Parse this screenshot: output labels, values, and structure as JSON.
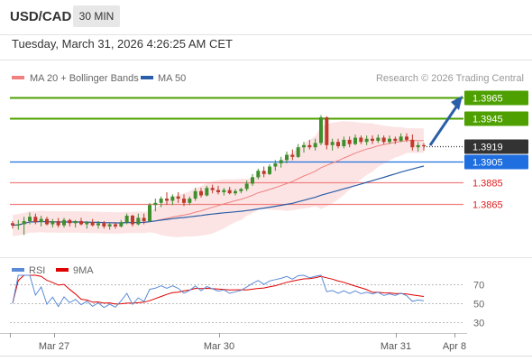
{
  "header": {
    "symbol": "USD/CAD",
    "timeframe": "30 MIN"
  },
  "timestamp": "Tuesday, March 31, 2026 4:26:25 AM CET",
  "legend": {
    "bb_label": "MA 20 + Bollinger Bands",
    "ma50_label": "MA 50",
    "rsi_label": "RSI",
    "rsi_ma_label": "9MA",
    "colors": {
      "bb": "#f08080",
      "ma50": "#2b5ea8",
      "rsi": "#5b8bd6",
      "rsi_ma": "#e00000"
    }
  },
  "copyright": "Research © 2026 Trading Central",
  "price_levels": [
    {
      "value": "1.3965",
      "type": "resistance",
      "color": "#4ea000"
    },
    {
      "value": "1.3945",
      "type": "resistance",
      "color": "#4ea000"
    },
    {
      "value": "1.3919",
      "type": "current",
      "color": "#333333"
    },
    {
      "value": "1.3905",
      "type": "pivot",
      "color": "#1f6fe0"
    },
    {
      "value": "1.3885",
      "type": "support",
      "color": "#f08080"
    },
    {
      "value": "1.3865",
      "type": "support",
      "color": "#f08080"
    }
  ],
  "chart_data": {
    "type": "candlestick",
    "x_tick_labels": [
      "Mar 27",
      "Mar 30",
      "Mar 31",
      "Apr 8"
    ],
    "price_range": [
      1.3835,
      1.397
    ],
    "rsi_levels": [
      "70",
      "50",
      "30"
    ],
    "rsi_range": [
      20,
      80
    ],
    "series": [
      {
        "name": "MA 20 + Bollinger Bands"
      },
      {
        "name": "MA 50"
      },
      {
        "name": "RSI"
      },
      {
        "name": "9MA"
      }
    ],
    "candles": [
      [
        1.3847,
        1.3849,
        1.3842,
        1.3845
      ],
      [
        1.3845,
        1.385,
        1.3841,
        1.3846
      ],
      [
        1.3846,
        1.3853,
        1.3836,
        1.3849
      ],
      [
        1.3849,
        1.3857,
        1.3846,
        1.3853
      ],
      [
        1.3853,
        1.3856,
        1.3846,
        1.3848
      ],
      [
        1.3848,
        1.3854,
        1.3844,
        1.3851
      ],
      [
        1.3851,
        1.3853,
        1.3845,
        1.3846
      ],
      [
        1.3846,
        1.3851,
        1.3843,
        1.3849
      ],
      [
        1.3849,
        1.3852,
        1.3843,
        1.3845
      ],
      [
        1.3845,
        1.3852,
        1.3843,
        1.385
      ],
      [
        1.385,
        1.3851,
        1.3844,
        1.3847
      ],
      [
        1.3847,
        1.385,
        1.3843,
        1.3849
      ],
      [
        1.3849,
        1.3852,
        1.3845,
        1.3846
      ],
      [
        1.3846,
        1.3849,
        1.3842,
        1.3848
      ],
      [
        1.3848,
        1.3851,
        1.3844,
        1.3845
      ],
      [
        1.3845,
        1.3849,
        1.3842,
        1.3847
      ],
      [
        1.3847,
        1.3849,
        1.3842,
        1.3844
      ],
      [
        1.3844,
        1.3848,
        1.3841,
        1.3846
      ],
      [
        1.3846,
        1.3848,
        1.3842,
        1.3844
      ],
      [
        1.3844,
        1.385,
        1.3843,
        1.3848
      ],
      [
        1.3848,
        1.3856,
        1.3846,
        1.3854
      ],
      [
        1.3854,
        1.3855,
        1.3844,
        1.3846
      ],
      [
        1.3846,
        1.3856,
        1.3845,
        1.3852
      ],
      [
        1.3852,
        1.3856,
        1.3846,
        1.3849
      ],
      [
        1.3849,
        1.3866,
        1.3848,
        1.3864
      ],
      [
        1.3864,
        1.387,
        1.3858,
        1.3866
      ],
      [
        1.3866,
        1.3872,
        1.3862,
        1.387
      ],
      [
        1.387,
        1.3876,
        1.3864,
        1.3868
      ],
      [
        1.3868,
        1.3874,
        1.3864,
        1.3872
      ],
      [
        1.3872,
        1.3876,
        1.3866,
        1.387
      ],
      [
        1.387,
        1.3874,
        1.3863,
        1.3866
      ],
      [
        1.3866,
        1.3872,
        1.3864,
        1.387
      ],
      [
        1.387,
        1.388,
        1.3868,
        1.3877
      ],
      [
        1.3877,
        1.388,
        1.3871,
        1.3873
      ],
      [
        1.3873,
        1.3882,
        1.3872,
        1.388
      ],
      [
        1.388,
        1.3883,
        1.3875,
        1.3878
      ],
      [
        1.3878,
        1.3882,
        1.3874,
        1.3876
      ],
      [
        1.3876,
        1.388,
        1.3873,
        1.3878
      ],
      [
        1.3878,
        1.3881,
        1.3874,
        1.3875
      ],
      [
        1.3875,
        1.3879,
        1.3873,
        1.3877
      ],
      [
        1.3877,
        1.388,
        1.3875,
        1.3879
      ],
      [
        1.3879,
        1.3887,
        1.3877,
        1.3884
      ],
      [
        1.3884,
        1.3893,
        1.3882,
        1.389
      ],
      [
        1.389,
        1.3898,
        1.3888,
        1.3896
      ],
      [
        1.3896,
        1.39,
        1.389,
        1.3893
      ],
      [
        1.3893,
        1.3902,
        1.3892,
        1.39
      ],
      [
        1.39,
        1.3906,
        1.3896,
        1.3903
      ],
      [
        1.3903,
        1.3909,
        1.3899,
        1.3906
      ],
      [
        1.3906,
        1.3914,
        1.3903,
        1.3911
      ],
      [
        1.3911,
        1.3916,
        1.3906,
        1.3909
      ],
      [
        1.3909,
        1.3921,
        1.3908,
        1.3918
      ],
      [
        1.3918,
        1.3923,
        1.3913,
        1.392
      ],
      [
        1.392,
        1.3925,
        1.3916,
        1.3918
      ],
      [
        1.3918,
        1.3926,
        1.3915,
        1.3922
      ],
      [
        1.3922,
        1.3948,
        1.392,
        1.3946
      ],
      [
        1.3946,
        1.3947,
        1.3916,
        1.392
      ],
      [
        1.392,
        1.3926,
        1.3915,
        1.3923
      ],
      [
        1.3923,
        1.3926,
        1.3917,
        1.3919
      ],
      [
        1.3919,
        1.3928,
        1.3917,
        1.3925
      ],
      [
        1.3925,
        1.3928,
        1.3918,
        1.3921
      ],
      [
        1.3921,
        1.393,
        1.392,
        1.3927
      ],
      [
        1.3927,
        1.3929,
        1.3921,
        1.3923
      ],
      [
        1.3923,
        1.3929,
        1.392,
        1.3926
      ],
      [
        1.3926,
        1.3929,
        1.3921,
        1.3924
      ],
      [
        1.3924,
        1.393,
        1.3922,
        1.3927
      ],
      [
        1.3927,
        1.3929,
        1.3921,
        1.3923
      ],
      [
        1.3923,
        1.3929,
        1.3921,
        1.3926
      ],
      [
        1.3926,
        1.3928,
        1.3921,
        1.3924
      ],
      [
        1.3924,
        1.3931,
        1.3923,
        1.3928
      ],
      [
        1.3928,
        1.3931,
        1.3923,
        1.3925
      ],
      [
        1.3925,
        1.393,
        1.3915,
        1.3918
      ],
      [
        1.3918,
        1.3923,
        1.3914,
        1.392
      ],
      [
        1.392,
        1.3922,
        1.3915,
        1.3919
      ]
    ]
  }
}
